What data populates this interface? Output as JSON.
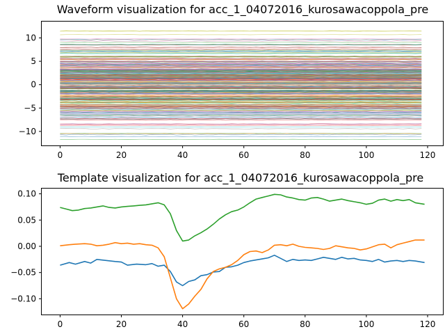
{
  "chart_data": [
    {
      "type": "line",
      "title": "Waveform visualization for acc_1_04072016_kurosawacoppola_pre",
      "xlabel": "",
      "ylabel": "",
      "xlim": [
        -6,
        125
      ],
      "ylim": [
        -13,
        13.5
      ],
      "xticks": [
        0,
        20,
        40,
        60,
        80,
        100,
        120
      ],
      "yticks": [
        -10,
        -5,
        0,
        5,
        10
      ],
      "grid": false,
      "legend": "none",
      "num_traces": 300,
      "trace_baselines_range": [
        -12,
        12
      ],
      "samples": 120,
      "note_style": "many thin translucent overlapping traces"
    },
    {
      "type": "line",
      "title": "Template visualization for acc_1_04072016_kurosawacoppola_pre",
      "xlabel": "",
      "ylabel": "",
      "xlim": [
        -6,
        125
      ],
      "ylim": [
        -0.13,
        0.11
      ],
      "xticks": [
        0,
        20,
        40,
        60,
        80,
        100,
        120
      ],
      "yticks": [
        -0.1,
        -0.05,
        0.0,
        0.05,
        0.1
      ],
      "ytick_labels": [
        "−0.10",
        "−0.05",
        "0.00",
        "0.05",
        "0.10"
      ],
      "grid": false,
      "legend": "none",
      "series": [
        {
          "color": "#1f77b4",
          "points": [
            [
              0,
              -0.036
            ],
            [
              3,
              -0.031
            ],
            [
              5,
              -0.034
            ],
            [
              8,
              -0.029
            ],
            [
              10,
              -0.032
            ],
            [
              12,
              -0.025
            ],
            [
              15,
              -0.027
            ],
            [
              18,
              -0.029
            ],
            [
              20,
              -0.03
            ],
            [
              22,
              -0.036
            ],
            [
              25,
              -0.034
            ],
            [
              28,
              -0.035
            ],
            [
              30,
              -0.033
            ],
            [
              32,
              -0.038
            ],
            [
              34,
              -0.036
            ],
            [
              36,
              -0.048
            ],
            [
              38,
              -0.068
            ],
            [
              40,
              -0.075
            ],
            [
              42,
              -0.067
            ],
            [
              44,
              -0.064
            ],
            [
              46,
              -0.056
            ],
            [
              48,
              -0.054
            ],
            [
              50,
              -0.049
            ],
            [
              52,
              -0.048
            ],
            [
              54,
              -0.04
            ],
            [
              56,
              -0.039
            ],
            [
              58,
              -0.036
            ],
            [
              60,
              -0.031
            ],
            [
              62,
              -0.028
            ],
            [
              64,
              -0.026
            ],
            [
              66,
              -0.024
            ],
            [
              68,
              -0.022
            ],
            [
              70,
              -0.017
            ],
            [
              72,
              -0.023
            ],
            [
              74,
              -0.029
            ],
            [
              76,
              -0.025
            ],
            [
              78,
              -0.027
            ],
            [
              80,
              -0.026
            ],
            [
              82,
              -0.027
            ],
            [
              84,
              -0.024
            ],
            [
              86,
              -0.021
            ],
            [
              88,
              -0.023
            ],
            [
              90,
              -0.025
            ],
            [
              92,
              -0.021
            ],
            [
              94,
              -0.024
            ],
            [
              96,
              -0.023
            ],
            [
              98,
              -0.026
            ],
            [
              100,
              -0.027
            ],
            [
              102,
              -0.029
            ],
            [
              104,
              -0.025
            ],
            [
              106,
              -0.03
            ],
            [
              108,
              -0.028
            ],
            [
              110,
              -0.027
            ],
            [
              112,
              -0.029
            ],
            [
              114,
              -0.027
            ],
            [
              116,
              -0.028
            ],
            [
              119,
              -0.031
            ]
          ]
        },
        {
          "color": "#ff7f0e",
          "points": [
            [
              0,
              0.001
            ],
            [
              3,
              0.003
            ],
            [
              5,
              0.004
            ],
            [
              8,
              0.005
            ],
            [
              10,
              0.004
            ],
            [
              12,
              0.001
            ],
            [
              14,
              0.002
            ],
            [
              16,
              0.004
            ],
            [
              18,
              0.007
            ],
            [
              20,
              0.005
            ],
            [
              22,
              0.006
            ],
            [
              24,
              0.004
            ],
            [
              26,
              0.005
            ],
            [
              28,
              0.003
            ],
            [
              30,
              0.002
            ],
            [
              32,
              -0.003
            ],
            [
              34,
              -0.02
            ],
            [
              36,
              -0.06
            ],
            [
              38,
              -0.1
            ],
            [
              40,
              -0.119
            ],
            [
              42,
              -0.11
            ],
            [
              44,
              -0.095
            ],
            [
              46,
              -0.082
            ],
            [
              48,
              -0.062
            ],
            [
              50,
              -0.048
            ],
            [
              52,
              -0.043
            ],
            [
              54,
              -0.04
            ],
            [
              56,
              -0.035
            ],
            [
              58,
              -0.027
            ],
            [
              60,
              -0.016
            ],
            [
              62,
              -0.01
            ],
            [
              64,
              -0.009
            ],
            [
              66,
              -0.012
            ],
            [
              68,
              -0.007
            ],
            [
              70,
              0.002
            ],
            [
              72,
              0.003
            ],
            [
              74,
              0.001
            ],
            [
              76,
              0.004
            ],
            [
              78,
              0.0
            ],
            [
              80,
              -0.002
            ],
            [
              82,
              -0.003
            ],
            [
              84,
              -0.004
            ],
            [
              86,
              -0.006
            ],
            [
              88,
              -0.004
            ],
            [
              90,
              0.001
            ],
            [
              92,
              -0.001
            ],
            [
              94,
              -0.003
            ],
            [
              96,
              -0.004
            ],
            [
              98,
              -0.007
            ],
            [
              100,
              -0.005
            ],
            [
              102,
              -0.001
            ],
            [
              104,
              0.003
            ],
            [
              106,
              0.004
            ],
            [
              108,
              -0.003
            ],
            [
              110,
              0.003
            ],
            [
              112,
              0.006
            ],
            [
              114,
              0.009
            ],
            [
              116,
              0.012
            ],
            [
              119,
              0.012
            ]
          ]
        },
        {
          "color": "#2ca02c",
          "points": [
            [
              0,
              0.074
            ],
            [
              2,
              0.071
            ],
            [
              4,
              0.068
            ],
            [
              6,
              0.069
            ],
            [
              8,
              0.072
            ],
            [
              10,
              0.073
            ],
            [
              12,
              0.075
            ],
            [
              14,
              0.077
            ],
            [
              16,
              0.074
            ],
            [
              18,
              0.073
            ],
            [
              20,
              0.075
            ],
            [
              22,
              0.076
            ],
            [
              24,
              0.077
            ],
            [
              26,
              0.078
            ],
            [
              28,
              0.079
            ],
            [
              30,
              0.081
            ],
            [
              32,
              0.083
            ],
            [
              34,
              0.079
            ],
            [
              36,
              0.062
            ],
            [
              38,
              0.03
            ],
            [
              40,
              0.01
            ],
            [
              42,
              0.012
            ],
            [
              44,
              0.02
            ],
            [
              46,
              0.026
            ],
            [
              48,
              0.033
            ],
            [
              50,
              0.042
            ],
            [
              52,
              0.052
            ],
            [
              54,
              0.06
            ],
            [
              56,
              0.066
            ],
            [
              58,
              0.069
            ],
            [
              60,
              0.075
            ],
            [
              62,
              0.083
            ],
            [
              64,
              0.09
            ],
            [
              66,
              0.093
            ],
            [
              68,
              0.096
            ],
            [
              70,
              0.099
            ],
            [
              72,
              0.098
            ],
            [
              74,
              0.094
            ],
            [
              76,
              0.092
            ],
            [
              78,
              0.089
            ],
            [
              80,
              0.088
            ],
            [
              82,
              0.092
            ],
            [
              84,
              0.093
            ],
            [
              86,
              0.09
            ],
            [
              88,
              0.086
            ],
            [
              90,
              0.088
            ],
            [
              92,
              0.09
            ],
            [
              94,
              0.087
            ],
            [
              96,
              0.085
            ],
            [
              98,
              0.083
            ],
            [
              100,
              0.08
            ],
            [
              102,
              0.082
            ],
            [
              104,
              0.088
            ],
            [
              106,
              0.09
            ],
            [
              108,
              0.086
            ],
            [
              110,
              0.089
            ],
            [
              112,
              0.087
            ],
            [
              114,
              0.089
            ],
            [
              116,
              0.083
            ],
            [
              119,
              0.08
            ]
          ]
        }
      ]
    }
  ]
}
